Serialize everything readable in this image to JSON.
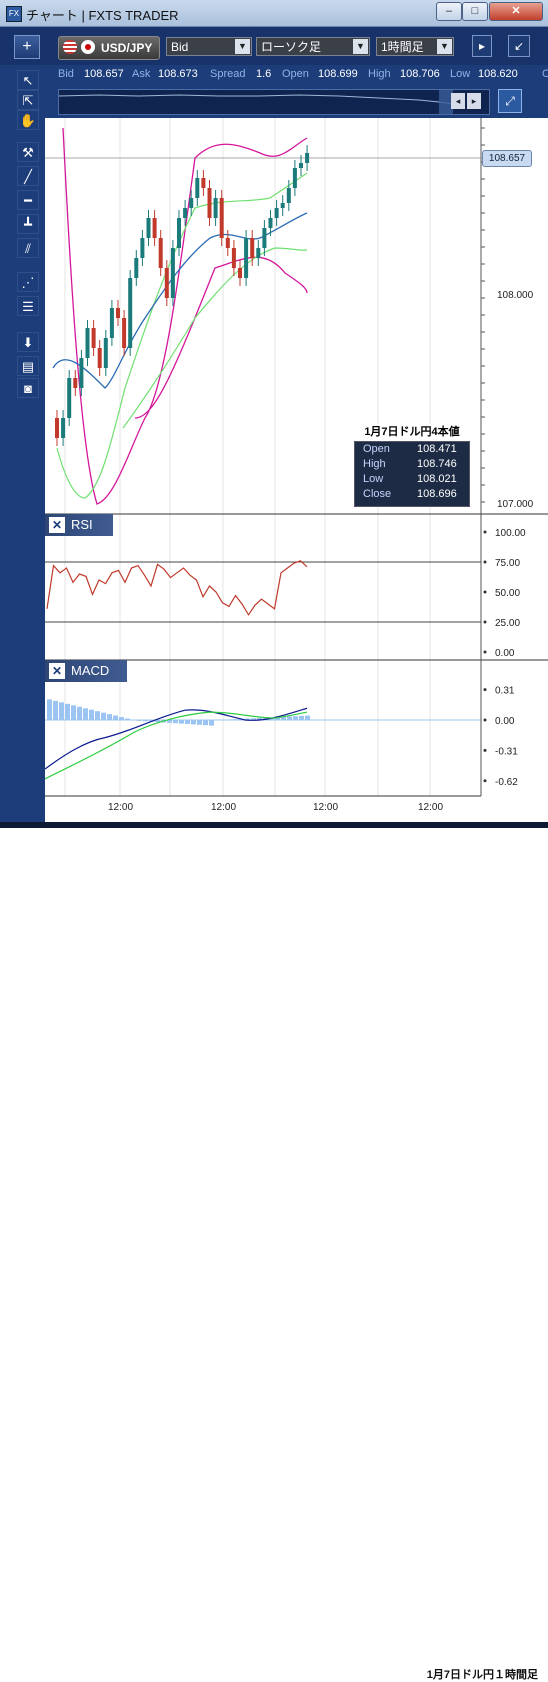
{
  "window": {
    "title": "チャート | FXTS TRADER",
    "icon": "fx-app-icon",
    "controls": [
      "minimize",
      "maximize",
      "close"
    ]
  },
  "toolbar": {
    "add_label": "+",
    "symbol": "USD/JPY",
    "price_side": "Bid",
    "chart_type": "ローソク足",
    "timeframe": "1時間足"
  },
  "quote": {
    "bid_label": "Bid",
    "bid": "108.657",
    "ask_label": "Ask",
    "ask": "108.673",
    "spread_label": "Spread",
    "spread": "1.6",
    "open_label": "Open",
    "open": "108.699",
    "high_label": "High",
    "high": "108.706",
    "low_label": "Low",
    "low": "108.620",
    "extra": "C"
  },
  "price_chart": {
    "current_price_tag": "108.657",
    "y_ticks": [
      "108.000",
      "107.000"
    ],
    "x_ticks": [
      "12:00",
      "12:00",
      "12:00",
      "12:00"
    ],
    "info_box": {
      "title": "1月7日ドル円4本値",
      "rows": [
        {
          "k": "Open",
          "v": "108.471"
        },
        {
          "k": "High",
          "v": "108.746"
        },
        {
          "k": "Low",
          "v": "108.021"
        },
        {
          "k": "Close",
          "v": "108.696"
        }
      ]
    }
  },
  "rsi": {
    "title": "RSI",
    "ticks": [
      "100.00",
      "75.00",
      "50.00",
      "25.00",
      "0.00"
    ],
    "values": [
      36,
      72,
      66,
      70,
      58,
      65,
      63,
      48,
      60,
      57,
      66,
      68,
      58,
      70,
      72,
      64,
      55,
      73,
      69,
      62,
      66,
      70,
      64,
      60,
      46,
      55,
      50,
      41,
      38,
      47,
      40,
      31,
      39,
      44,
      40,
      36,
      66,
      70,
      74,
      76,
      71
    ]
  },
  "macd": {
    "title": "MACD",
    "ticks": [
      "0.31",
      "0.00",
      "-0.31",
      "-0.62"
    ]
  },
  "caption": "1月7日ドル円１時間足",
  "colors": {
    "window_bg": "#1c3d7a",
    "candle_up": "#1b7a7a",
    "candle_down": "#c0392b",
    "bb_outer": "#d4169b",
    "bb_inner": "#6fe06f",
    "ma": "#2a6bb5",
    "rsi_line": "#c0392b",
    "macd_line": "#0b1a8f",
    "signal_line": "#2ecc40",
    "histogram": "#9cc4f2"
  }
}
